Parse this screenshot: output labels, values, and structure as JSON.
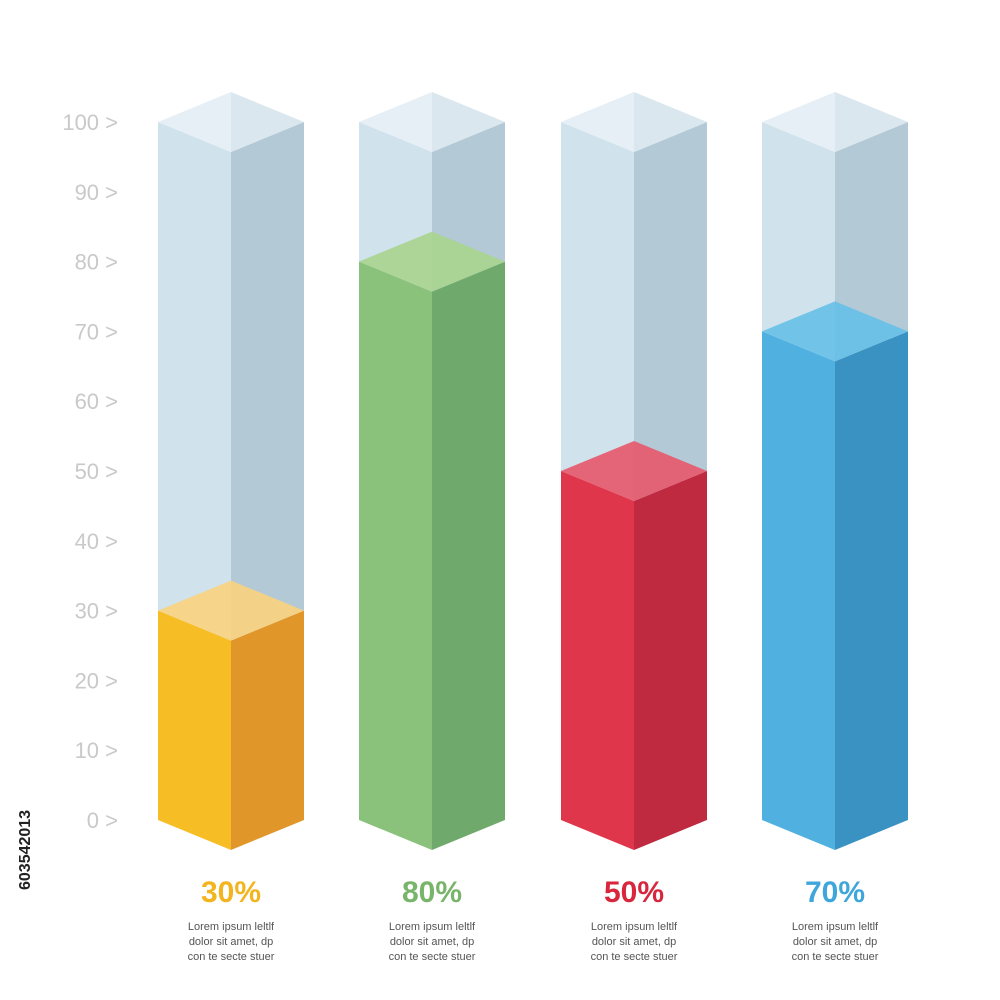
{
  "chart_data": {
    "type": "bar",
    "title": "",
    "xlabel": "",
    "ylabel": "",
    "ylim": [
      0,
      100
    ],
    "grid": false,
    "y_ticks": [
      "0 >",
      "10 >",
      "20 >",
      "30 >",
      "40 >",
      "50 >",
      "60 >",
      "70 >",
      "80 >",
      "90 >",
      "100 >"
    ],
    "categories": [
      "30%",
      "80%",
      "50%",
      "70%"
    ],
    "values": [
      30,
      80,
      50,
      70
    ],
    "descriptions": [
      [
        "Lorem ipsum leltlf",
        "dolor sit amet, dp",
        "con te secte stuer"
      ],
      [
        "Lorem ipsum leltlf",
        "dolor sit amet, dp",
        "con te secte stuer"
      ],
      [
        "Lorem ipsum leltlf",
        "dolor sit amet, dp",
        "con te secte stuer"
      ],
      [
        "Lorem ipsum leltlf",
        "dolor sit amet, dp",
        "con te secte stuer"
      ]
    ],
    "colors": [
      {
        "front": "#f6bd25",
        "side": "#e1962a",
        "top": "#f9d37f",
        "label": "#f2b51f"
      },
      {
        "front": "#8ac27b",
        "side": "#6faa6c",
        "top": "#a9d48f",
        "label": "#78b46a"
      },
      {
        "front": "#e0364b",
        "side": "#c02a41",
        "top": "#e7586c",
        "label": "#d7263d"
      },
      {
        "front": "#50b0df",
        "side": "#3a92c3",
        "top": "#66c0e8",
        "label": "#3fa6dc"
      }
    ],
    "empty_colors": {
      "front": "#d0e2ec",
      "side": "#b4c9d6",
      "top": "#e6eff5",
      "top_side": "#dbe7ef"
    }
  },
  "stock_id": "603542013"
}
